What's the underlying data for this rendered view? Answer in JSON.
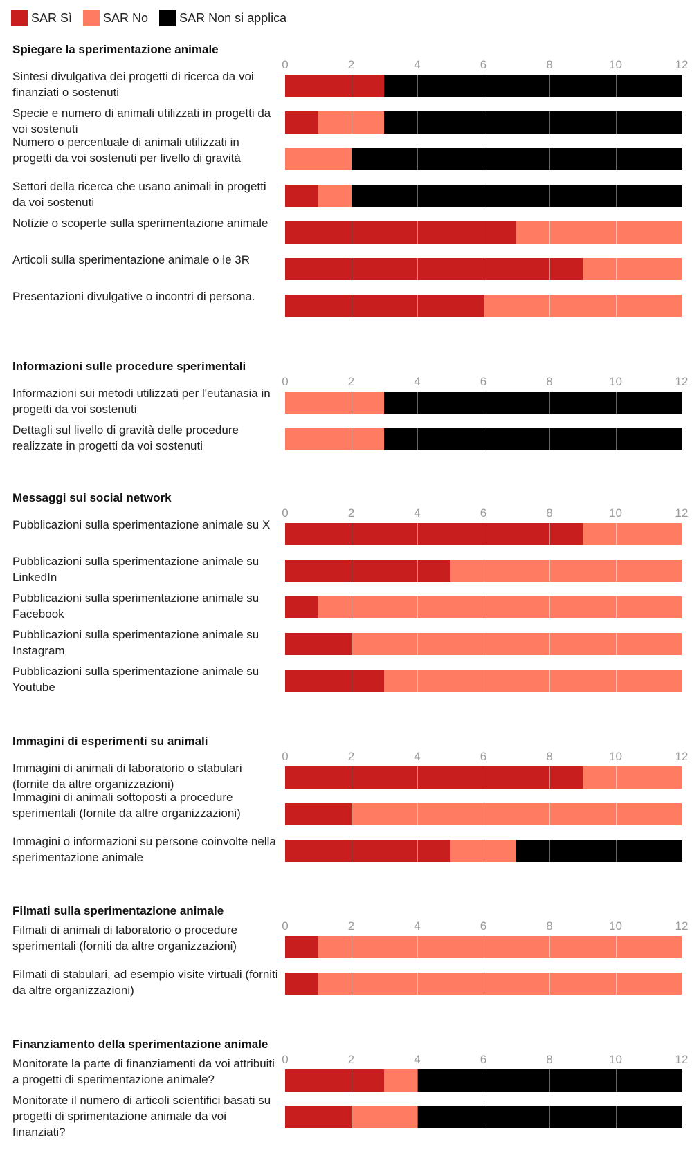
{
  "legend": [
    {
      "label": "SAR Sì",
      "color": "#c91e1e"
    },
    {
      "label": "SAR No",
      "color": "#ff7b62"
    },
    {
      "label": "SAR Non si applica",
      "color": "#000000"
    }
  ],
  "chart_data": {
    "type": "bar",
    "orientation": "horizontal",
    "stacked": true,
    "xlim": [
      0,
      12
    ],
    "xticks": [
      "0",
      "2",
      "4",
      "6",
      "8",
      "10",
      "12"
    ],
    "grid": true,
    "legend_position": "top-left",
    "series_names": [
      "SAR Sì",
      "SAR No",
      "SAR Non si applica"
    ],
    "series_colors": [
      "#c91e1e",
      "#ff7b62",
      "#000000"
    ],
    "sections": [
      {
        "title": "Spiegare la sperimentazione animale",
        "rows": [
          {
            "label": "Sintesi divulgativa dei progetti di ricerca da voi finanziati o sostenuti",
            "values": [
              3,
              0,
              9
            ]
          },
          {
            "label": "Specie e numero di animali utilizzati in progetti da voi sostenuti",
            "values": [
              1,
              2,
              9
            ]
          },
          {
            "label": "Numero o percentuale di animali utilizzati in progetti da voi sostenuti per livello di gravità",
            "values": [
              0,
              2,
              10
            ]
          },
          {
            "label": "Settori della ricerca che usano animali in progetti da voi sostenuti",
            "values": [
              1,
              1,
              10
            ]
          },
          {
            "label": "Notizie o scoperte sulla sperimentazione animale",
            "values": [
              7,
              5,
              0
            ]
          },
          {
            "label": "Articoli sulla sperimentazione animale o le 3R",
            "values": [
              9,
              3,
              0
            ]
          },
          {
            "label": "Presentazioni divulgative o incontri di persona.",
            "values": [
              6,
              6,
              0
            ]
          }
        ]
      },
      {
        "title": "Informazioni sulle procedure sperimentali",
        "rows": [
          {
            "label": "Informazioni sui metodi utilizzati per l'eutanasia in progetti da voi sostenuti",
            "values": [
              0,
              3,
              9
            ]
          },
          {
            "label": "Dettagli sul livello di gravità delle procedure realizzate in progetti da voi sostenuti",
            "values": [
              0,
              3,
              9
            ]
          }
        ]
      },
      {
        "title": "Messaggi sui social network",
        "rows": [
          {
            "label": "Pubblicazioni sulla sperimentazione animale su X",
            "values": [
              9,
              3,
              0
            ]
          },
          {
            "label": "Pubblicazioni sulla sperimentazione animale su LinkedIn",
            "values": [
              5,
              7,
              0
            ]
          },
          {
            "label": "Pubblicazioni sulla sperimentazione animale su Facebook",
            "values": [
              1,
              11,
              0
            ]
          },
          {
            "label": "Pubblicazioni sulla sperimentazione animale su Instagram",
            "values": [
              2,
              10,
              0
            ]
          },
          {
            "label": "Pubblicazioni sulla sperimentazione animale su Youtube",
            "values": [
              3,
              9,
              0
            ]
          }
        ]
      },
      {
        "title": "Immagini di esperimenti su animali",
        "rows": [
          {
            "label": "Immagini di animali di laboratorio o stabulari (fornite da altre organizzazioni)",
            "values": [
              9,
              3,
              0
            ]
          },
          {
            "label": "Immagini di animali sottoposti a procedure sperimentali (fornite da altre organizzazioni)",
            "values": [
              2,
              10,
              0
            ]
          },
          {
            "label": "Immagini o informazioni su persone coinvolte nella sperimentazione animale",
            "values": [
              5,
              2,
              5
            ]
          }
        ]
      },
      {
        "title": "Filmati sulla sperimentazione animale",
        "rows": [
          {
            "label": "Filmati di animali di laboratorio o procedure sperimentali (forniti da altre organizzazioni)",
            "values": [
              1,
              11,
              0
            ]
          },
          {
            "label": "Filmati di stabulari, ad esempio visite virtuali (forniti da altre organizzazioni)",
            "values": [
              1,
              11,
              0
            ]
          }
        ]
      },
      {
        "title": "Finanziamento della sperimentazione animale",
        "rows": [
          {
            "label": "Monitorate la parte di finanziamenti da voi attribuiti a progetti di sperimentazione animale?",
            "values": [
              3,
              1,
              8
            ]
          },
          {
            "label": "Monitorate il numero di articoli scientifici basati su progetti di sprimentazione animale da voi finanziati?",
            "values": [
              2,
              2,
              8
            ]
          }
        ]
      }
    ]
  }
}
